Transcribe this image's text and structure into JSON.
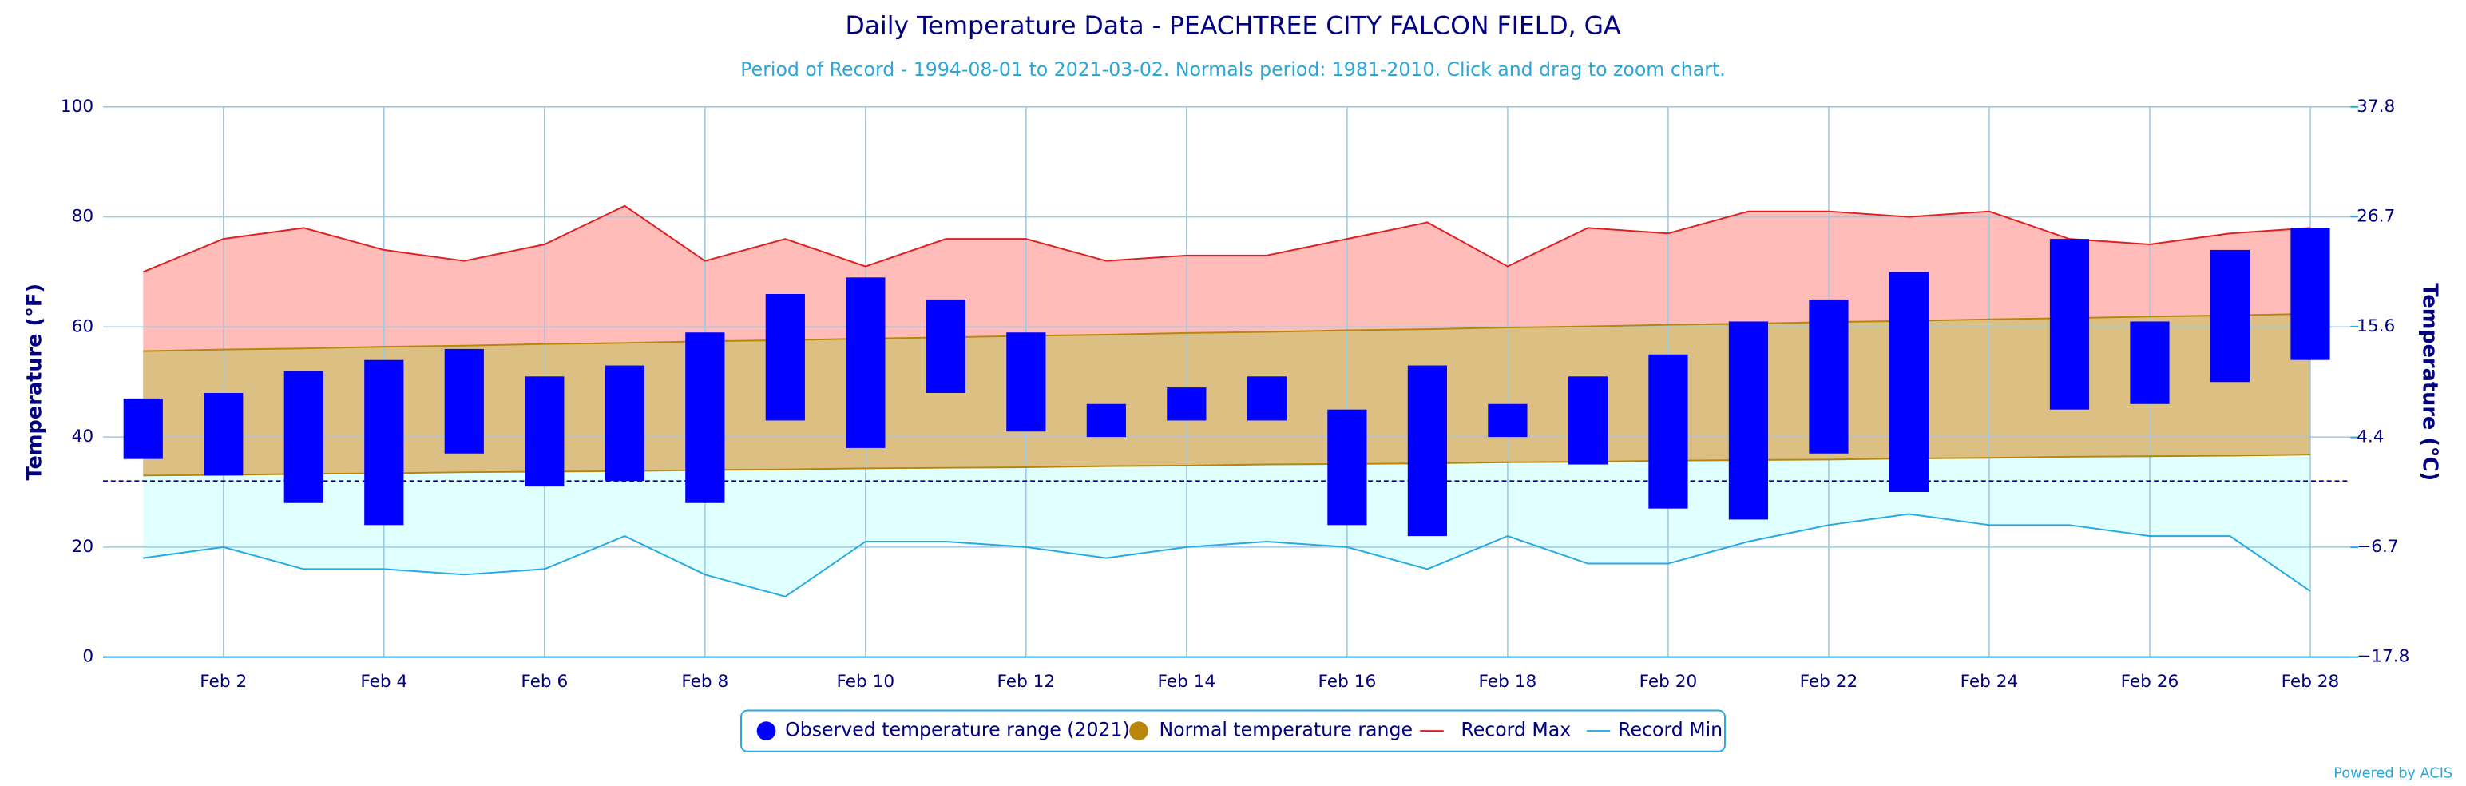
{
  "chart_data": {
    "type": "range",
    "title": "Daily Temperature Data - PEACHTREE CITY FALCON FIELD, GA",
    "subtitle": "Period of Record - 1994-08-01 to 2021-03-02. Normals period: 1981-2010. Click and drag to zoom chart.",
    "y_label": "Temperature (°F)",
    "y2_label": "Temperature (°C)",
    "credits": "Powered by ACIS",
    "categories": [
      null,
      "Feb 2",
      null,
      "Feb 4",
      null,
      "Feb 6",
      null,
      "Feb 8",
      null,
      "Feb 10",
      null,
      "Feb 12",
      null,
      "Feb 14",
      null,
      "Feb 16",
      null,
      "Feb 18",
      null,
      "Feb 20",
      null,
      "Feb 22",
      null,
      "Feb 24",
      null,
      "Feb 26",
      null,
      "Feb 28"
    ],
    "ylim": [
      0,
      100
    ],
    "yticks": [
      0,
      20,
      40,
      60,
      80,
      100
    ],
    "y2lim": [
      -17.8,
      37.8
    ],
    "y2ticks": [
      {
        "value": -17.8,
        "label": "−17.8"
      },
      {
        "value": -6.7,
        "label": "−6.7"
      },
      4.4,
      15.6,
      26.7,
      37.8
    ],
    "grid": true,
    "reference_line": 32,
    "series": [
      {
        "name": "Observed temperature range (2021)",
        "color": "#0000ff",
        "values": [
          [
            36,
            47
          ],
          [
            33,
            48
          ],
          [
            28,
            52
          ],
          [
            24,
            54
          ],
          [
            37,
            56
          ],
          [
            31,
            51
          ],
          [
            32,
            53
          ],
          [
            28,
            59
          ],
          [
            43,
            66
          ],
          [
            38,
            69
          ],
          [
            48,
            65
          ],
          [
            41,
            59
          ],
          [
            40,
            46
          ],
          [
            43,
            49
          ],
          [
            43,
            51
          ],
          [
            24,
            45
          ],
          [
            22,
            53
          ],
          [
            40,
            46
          ],
          [
            35,
            51
          ],
          [
            27,
            55
          ],
          [
            25,
            61
          ],
          [
            37,
            65
          ],
          [
            30,
            70
          ],
          null,
          [
            45,
            76
          ],
          [
            46,
            61
          ],
          [
            50,
            74
          ],
          [
            54,
            78
          ]
        ]
      },
      {
        "name": "Normal temperature range",
        "color": "#b8860b",
        "fill": "#dcc083",
        "values": [
          [
            33.0,
            55.6
          ],
          [
            33.1,
            55.9
          ],
          [
            33.3,
            56.1
          ],
          [
            33.4,
            56.4
          ],
          [
            33.6,
            56.6
          ],
          [
            33.7,
            56.9
          ],
          [
            33.8,
            57.1
          ],
          [
            34.0,
            57.4
          ],
          [
            34.1,
            57.6
          ],
          [
            34.3,
            57.9
          ],
          [
            34.4,
            58.1
          ],
          [
            34.5,
            58.4
          ],
          [
            34.7,
            58.6
          ],
          [
            34.8,
            58.9
          ],
          [
            35.0,
            59.1
          ],
          [
            35.1,
            59.4
          ],
          [
            35.2,
            59.6
          ],
          [
            35.4,
            59.9
          ],
          [
            35.5,
            60.1
          ],
          [
            35.7,
            60.4
          ],
          [
            35.8,
            60.6
          ],
          [
            35.9,
            60.9
          ],
          [
            36.1,
            61.1
          ],
          [
            36.2,
            61.4
          ],
          [
            36.4,
            61.6
          ],
          [
            36.5,
            61.9
          ],
          [
            36.6,
            62.1
          ],
          [
            36.8,
            62.4
          ]
        ]
      },
      {
        "name": "Record Max",
        "color": "#e02020",
        "fill": "#ffbcb8",
        "values": [
          70,
          76,
          78,
          74,
          72,
          75,
          82,
          72,
          76,
          71,
          76,
          76,
          72,
          73,
          73,
          76,
          79,
          71,
          78,
          77,
          81,
          81,
          80,
          81,
          76,
          75,
          77,
          78
        ]
      },
      {
        "name": "Record Min",
        "color": "#27a9e1",
        "fill": "#e0ffff",
        "values": [
          18,
          20,
          16,
          16,
          15,
          16,
          22,
          15,
          11,
          21,
          21,
          20,
          18,
          20,
          21,
          20,
          16,
          22,
          17,
          17,
          21,
          24,
          26,
          24,
          24,
          22,
          22,
          12
        ]
      }
    ]
  }
}
